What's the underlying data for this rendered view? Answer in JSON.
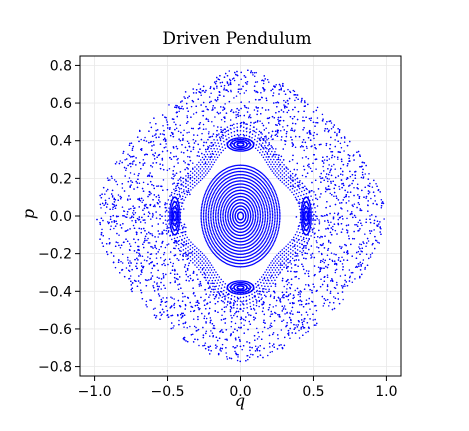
{
  "chart_data": {
    "type": "scatter",
    "title": "Driven Pendulum",
    "xlabel": "q",
    "ylabel": "p",
    "xlim": [
      -1.1,
      1.1
    ],
    "ylim": [
      -0.85,
      0.85
    ],
    "x_ticks": [
      -1.0,
      -0.5,
      0.0,
      0.5,
      1.0
    ],
    "x_tick_labels": [
      "−1.0",
      "−0.5",
      "0.0",
      "0.5",
      "1.0"
    ],
    "y_ticks": [
      -0.8,
      -0.6,
      -0.4,
      -0.2,
      0.0,
      0.2,
      0.4,
      0.6,
      0.8
    ],
    "y_tick_labels": [
      "−0.8",
      "−0.6",
      "−0.4",
      "−0.2",
      "0.0",
      "0.2",
      "0.4",
      "0.6",
      "0.8"
    ],
    "grid": true,
    "marker_color": "#0000ff",
    "description_of_data": "Poincare section of a driven pendulum: nested invariant curves around the origin, island chains near (0, ±0.38) and (±0.45, 0), and a chaotic band out to |q|≈1.0 and |p|≈0.78",
    "structures": {
      "central_curves": {
        "center": [
          0,
          0
        ],
        "q_radius": [
          0.02,
          0.27
        ],
        "p_radius": [
          0.02,
          0.27
        ],
        "count": 16
      },
      "islands": [
        {
          "center": [
            0.0,
            0.38
          ],
          "q_radius": 0.09,
          "p_radius": 0.035
        },
        {
          "center": [
            0.0,
            -0.38
          ],
          "q_radius": 0.09,
          "p_radius": 0.035
        },
        {
          "center": [
            0.45,
            0.0
          ],
          "q_radius": 0.035,
          "p_radius": 0.1
        },
        {
          "center": [
            -0.45,
            0.0
          ],
          "q_radius": 0.035,
          "p_radius": 0.1
        }
      ],
      "chaotic_band": {
        "q_max": 1.0,
        "p_max": 0.78,
        "inner_radius": 0.36
      }
    }
  }
}
